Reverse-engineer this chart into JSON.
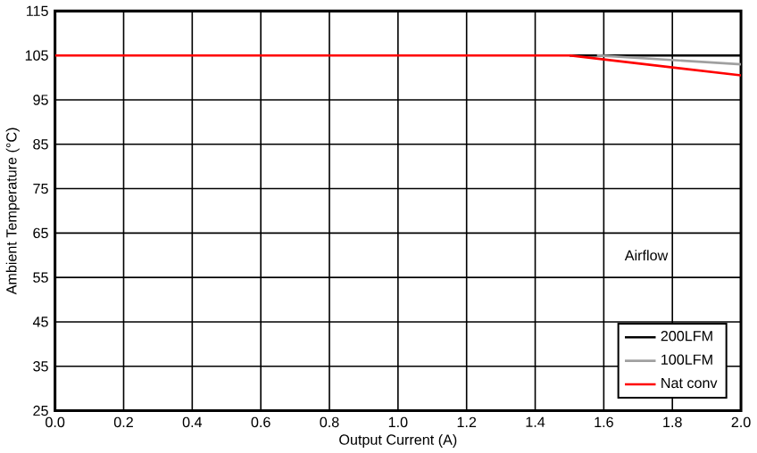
{
  "chart_data": {
    "type": "line",
    "xlabel": "Output Current (A)",
    "ylabel": "Ambient Temperature (°C)",
    "legend_title": "Airflow",
    "xlim": [
      0,
      2
    ],
    "xticks": [
      {
        "value": 0,
        "label": "0.0"
      },
      {
        "value": 0.2,
        "label": "0.2"
      },
      {
        "value": 0.4,
        "label": "0.4"
      },
      {
        "value": 0.6,
        "label": "0.6"
      },
      {
        "value": 0.8,
        "label": "0.8"
      },
      {
        "value": 1,
        "label": "1.0"
      },
      {
        "value": 1.2,
        "label": "1.2"
      },
      {
        "value": 1.4,
        "label": "1.4"
      },
      {
        "value": 1.6,
        "label": "1.6"
      },
      {
        "value": 1.8,
        "label": "1.8"
      },
      {
        "value": 2,
        "label": "2.0"
      }
    ],
    "ylim": [
      25,
      115
    ],
    "yticks": [
      25,
      35,
      45,
      55,
      65,
      75,
      85,
      95,
      105,
      115
    ],
    "grid": true,
    "legend": "bottom right",
    "series": [
      {
        "name": "200LFM",
        "color": "#000000",
        "x": [
          1.5,
          2
        ],
        "values": [
          105,
          105
        ]
      },
      {
        "name": "100LFM",
        "color": "#a0a0a0",
        "x": [
          1.58,
          2
        ],
        "values": [
          105,
          103
        ]
      },
      {
        "name": "Nat conv",
        "color": "#ff0000",
        "x": [
          0,
          1.5,
          2
        ],
        "values": [
          105,
          105,
          100.5
        ]
      }
    ]
  }
}
